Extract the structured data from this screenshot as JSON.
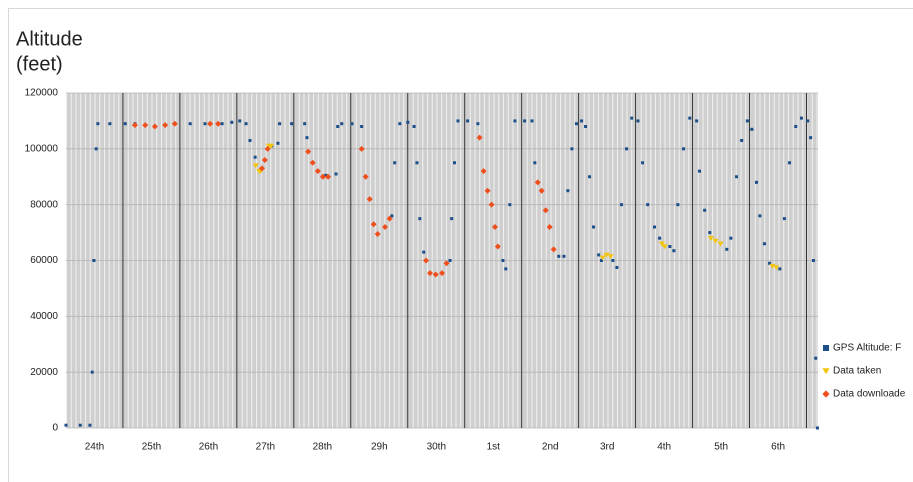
{
  "chart_data": {
    "type": "scatter",
    "ylabel_lines": [
      "Altitude",
      "(feet)"
    ],
    "xlim": [
      0,
      13.2
    ],
    "ylim": [
      0,
      120000
    ],
    "yticks": [
      0,
      20000,
      40000,
      60000,
      80000,
      100000,
      120000
    ],
    "xticks": [
      {
        "value": 0.5,
        "label": "24th"
      },
      {
        "value": 1.5,
        "label": "25th"
      },
      {
        "value": 2.5,
        "label": "26th"
      },
      {
        "value": 3.5,
        "label": "27th"
      },
      {
        "value": 4.5,
        "label": "28th"
      },
      {
        "value": 5.5,
        "label": "29h"
      },
      {
        "value": 6.5,
        "label": "30th"
      },
      {
        "value": 7.5,
        "label": "1st"
      },
      {
        "value": 8.5,
        "label": "2nd"
      },
      {
        "value": 9.5,
        "label": "3rd"
      },
      {
        "value": 10.5,
        "label": "4th"
      },
      {
        "value": 11.5,
        "label": "5th"
      },
      {
        "value": 12.5,
        "label": "6th"
      }
    ],
    "x_major_gridlines": [
      1,
      2,
      3,
      4,
      5,
      6,
      7,
      8,
      9,
      10,
      11,
      12,
      13
    ],
    "grid": true,
    "legend": "right",
    "series": [
      {
        "name": "GPS Altitude: F",
        "color": "#1c4f8a",
        "marker": "square",
        "x": [
          0,
          0.25,
          0.42,
          0.46,
          0.49,
          0.53,
          0.56,
          0.77,
          1.04,
          1.21,
          1.91,
          2.18,
          2.44,
          2.74,
          2.91,
          3.05,
          3.16,
          3.23,
          3.32,
          3.61,
          3.72,
          3.75,
          3.96,
          4.19,
          4.23,
          4.56,
          4.74,
          4.77,
          4.84,
          5.02,
          5.19,
          5.72,
          5.77,
          5.86,
          6.0,
          6.11,
          6.16,
          6.21,
          6.28,
          6.74,
          6.77,
          6.82,
          6.88,
          7.05,
          7.23,
          7.67,
          7.72,
          7.79,
          7.88,
          8.05,
          8.18,
          8.23,
          8.28,
          8.65,
          8.74,
          8.81,
          8.88,
          8.96,
          9.05,
          9.12,
          9.19,
          9.26,
          9.35,
          9.4,
          9.6,
          9.67,
          9.75,
          9.84,
          9.93,
          10.04,
          10.12,
          10.21,
          10.33,
          10.42,
          10.6,
          10.67,
          10.74,
          10.84,
          10.95,
          11.07,
          11.12,
          11.21,
          11.3,
          11.6,
          11.67,
          11.77,
          11.86,
          11.96,
          12.04,
          12.12,
          12.18,
          12.26,
          12.35,
          12.53,
          12.61,
          12.7,
          12.81,
          12.91,
          13.02,
          13.07,
          13.12,
          13.16,
          13.19
        ],
        "values": [
          1000,
          1000,
          1000,
          20000,
          60000,
          100000,
          109000,
          109000,
          109000,
          109000,
          109000,
          109000,
          109000,
          109000,
          109500,
          110000,
          109000,
          103000,
          97000,
          101000,
          102000,
          109000,
          109000,
          109000,
          104000,
          90500,
          91000,
          108000,
          109000,
          109000,
          108000,
          76000,
          95000,
          109000,
          109500,
          108000,
          95000,
          75000,
          63000,
          60000,
          75000,
          95000,
          110000,
          110000,
          109000,
          60000,
          57000,
          80000,
          110000,
          110000,
          110000,
          95000,
          88000,
          61500,
          61500,
          85000,
          100000,
          109000,
          110000,
          108000,
          90000,
          72000,
          62000,
          60000,
          60000,
          57500,
          80000,
          100000,
          111000,
          110000,
          95000,
          80000,
          72000,
          68000,
          65000,
          63500,
          80000,
          100000,
          111000,
          110000,
          92000,
          78000,
          70000,
          64000,
          68000,
          90000,
          103000,
          110000,
          107000,
          88000,
          76000,
          66000,
          59000,
          57000,
          75000,
          95000,
          108000,
          111000,
          110000,
          104000,
          60000,
          25000,
          0
        ]
      },
      {
        "name": "Data taken",
        "color": "#f2c40f",
        "marker": "triangle",
        "x": [
          3.33,
          3.39,
          3.42,
          3.56,
          3.6,
          9.42,
          9.49,
          9.56,
          10.46,
          10.51,
          11.32,
          11.4,
          11.49,
          12.4,
          12.47
        ],
        "values": [
          94000,
          92000,
          92000,
          101000,
          101000,
          61000,
          62000,
          61500,
          66000,
          65000,
          68000,
          67000,
          66000,
          58000,
          57500
        ]
      },
      {
        "name": "Data downloade",
        "color": "#ee4f1c",
        "marker": "diamond",
        "x": [
          1.21,
          1.39,
          1.56,
          1.74,
          1.91,
          2.53,
          2.67,
          3.44,
          3.49,
          3.54,
          4.25,
          4.33,
          4.42,
          4.51,
          4.6,
          5.19,
          5.26,
          5.33,
          5.4,
          5.47,
          5.6,
          5.68,
          6.32,
          6.39,
          6.49,
          6.6,
          6.68,
          7.26,
          7.33,
          7.4,
          7.47,
          7.53,
          7.58,
          8.28,
          8.35,
          8.42,
          8.49,
          8.56
        ],
        "values": [
          108500,
          108500,
          108000,
          108500,
          109000,
          109000,
          109000,
          93000,
          96000,
          100000,
          99000,
          95000,
          92000,
          90000,
          90000,
          100000,
          90000,
          82000,
          73000,
          69500,
          72000,
          75000,
          60000,
          55500,
          55000,
          55500,
          59000,
          104000,
          92000,
          85000,
          80000,
          72000,
          65000,
          88000,
          85000,
          78000,
          72000,
          64000
        ]
      }
    ]
  }
}
